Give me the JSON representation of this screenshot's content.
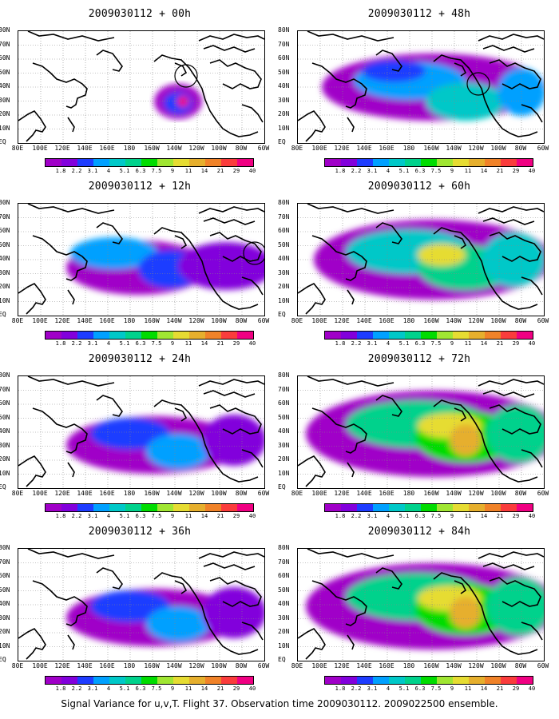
{
  "panels": [
    {
      "title": "2009030112 + 00h",
      "level": 0
    },
    {
      "title": "2009030112 + 48h",
      "level": 3
    },
    {
      "title": "2009030112 + 12h",
      "level": 1
    },
    {
      "title": "2009030112 + 60h",
      "level": 4
    },
    {
      "title": "2009030112 + 24h",
      "level": 2
    },
    {
      "title": "2009030112 + 72h",
      "level": 5
    },
    {
      "title": "2009030112 + 36h",
      "level": 2
    },
    {
      "title": "2009030112 + 84h",
      "level": 5
    }
  ],
  "latitude_labels": [
    "80N",
    "70N",
    "60N",
    "50N",
    "40N",
    "30N",
    "20N",
    "10N",
    "EQ"
  ],
  "longitude_labels": [
    "80E",
    "100E",
    "120E",
    "140E",
    "160E",
    "180",
    "160W",
    "140W",
    "120W",
    "100W",
    "80W",
    "60W"
  ],
  "colorbar": {
    "labels": [
      "1.8",
      "2.2",
      "3.1",
      "4",
      "5.1",
      "6.3",
      "7.5",
      "9",
      "11",
      "14",
      "21",
      "29",
      "40"
    ],
    "colors": [
      "#a000c8",
      "#8200dc",
      "#1e3cff",
      "#00a0ff",
      "#00c8c8",
      "#00d28c",
      "#00dc00",
      "#a0e632",
      "#e6dc32",
      "#e6af2d",
      "#f08228",
      "#fa3c3c",
      "#f00082"
    ]
  },
  "caption": "Signal Variance for u,v,T. Flight 37. Observation time 2009030112. 2009022500 ensemble."
}
